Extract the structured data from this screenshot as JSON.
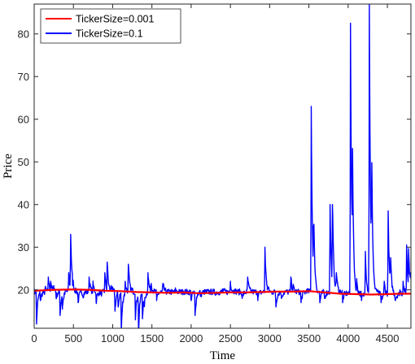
{
  "chart_data": {
    "type": "line",
    "xlabel": "Time",
    "ylabel": "Price",
    "xlim": [
      0,
      4800
    ],
    "ylim": [
      11,
      87
    ],
    "xticks": [
      0,
      500,
      1000,
      1500,
      2000,
      2500,
      3000,
      3500,
      4000,
      4500
    ],
    "yticks": [
      20,
      30,
      40,
      50,
      60,
      70,
      80
    ],
    "grid": false,
    "legend_position": "top-left",
    "series": [
      {
        "name": "TickerSize=0.001",
        "color": "#ff0000",
        "points": [
          [
            0,
            19.8
          ],
          [
            250,
            20.0
          ],
          [
            500,
            20.1
          ],
          [
            700,
            20.0
          ],
          [
            900,
            19.8
          ],
          [
            1100,
            19.7
          ],
          [
            1300,
            19.5
          ],
          [
            1500,
            19.4
          ],
          [
            1700,
            19.3
          ],
          [
            1900,
            19.4
          ],
          [
            2100,
            19.2
          ],
          [
            2300,
            19.3
          ],
          [
            2500,
            19.4
          ],
          [
            2700,
            19.4
          ],
          [
            2900,
            19.5
          ],
          [
            3100,
            19.6
          ],
          [
            3300,
            19.6
          ],
          [
            3500,
            19.7
          ],
          [
            3700,
            19.4
          ],
          [
            3900,
            19.1
          ],
          [
            4100,
            19.0
          ],
          [
            4300,
            18.9
          ],
          [
            4500,
            19.0
          ],
          [
            4650,
            19.1
          ],
          [
            4800,
            19.1
          ]
        ]
      },
      {
        "name": "TickerSize=0.1",
        "color": "#0000ff",
        "spikes": [
          [
            30,
            12.0,
            19.5
          ],
          [
            80,
            17.5,
            19.5
          ],
          [
            140,
            20.5,
            19.5
          ],
          [
            180,
            23.0,
            19.5
          ],
          [
            210,
            22.0,
            19.5
          ],
          [
            250,
            21.0,
            19.5
          ],
          [
            280,
            18.0,
            19.5
          ],
          [
            330,
            14.0,
            19.5
          ],
          [
            360,
            16.0,
            19.5
          ],
          [
            400,
            20.0,
            19.5
          ],
          [
            440,
            24.0,
            19.5
          ],
          [
            465,
            33.0,
            19.5
          ],
          [
            490,
            21.0,
            19.5
          ],
          [
            560,
            17.0,
            19.5
          ],
          [
            620,
            18.5,
            19.5
          ],
          [
            700,
            23.0,
            19.5
          ],
          [
            750,
            21.5,
            19.5
          ],
          [
            790,
            17.0,
            19.5
          ],
          [
            850,
            19.0,
            19.5
          ],
          [
            900,
            24.0,
            19.5
          ],
          [
            930,
            26.5,
            19.5
          ],
          [
            980,
            21.0,
            19.5
          ],
          [
            1030,
            15.0,
            19.5
          ],
          [
            1070,
            16.0,
            19.5
          ],
          [
            1110,
            10.0,
            19.5
          ],
          [
            1160,
            22.0,
            19.5
          ],
          [
            1200,
            26.0,
            19.5
          ],
          [
            1240,
            20.0,
            19.5
          ],
          [
            1290,
            13.0,
            19.5
          ],
          [
            1330,
            10.0,
            19.5
          ],
          [
            1380,
            13.5,
            19.5
          ],
          [
            1400,
            17.0,
            19.5
          ],
          [
            1450,
            24.0,
            19.5
          ],
          [
            1490,
            21.5,
            19.5
          ],
          [
            1560,
            17.5,
            19.5
          ],
          [
            1640,
            21.5,
            19.5
          ],
          [
            1700,
            19.5,
            19.5
          ],
          [
            1800,
            20.0,
            19.5
          ],
          [
            1900,
            19.7,
            19.5
          ],
          [
            2000,
            17.5,
            19.5
          ],
          [
            2050,
            14.0,
            19.5
          ],
          [
            2120,
            18.5,
            19.5
          ],
          [
            2200,
            19.6,
            19.5
          ],
          [
            2300,
            19.3,
            19.5
          ],
          [
            2400,
            20.0,
            19.5
          ],
          [
            2500,
            22.0,
            19.5
          ],
          [
            2550,
            20.0,
            19.5
          ],
          [
            2650,
            18.0,
            19.5
          ],
          [
            2720,
            23.0,
            19.5
          ],
          [
            2760,
            19.5,
            19.5
          ],
          [
            2850,
            18.0,
            19.5
          ],
          [
            2940,
            30.0,
            19.5
          ],
          [
            2970,
            20.0,
            19.5
          ],
          [
            3080,
            16.0,
            19.5
          ],
          [
            3150,
            18.0,
            19.5
          ],
          [
            3270,
            23.0,
            19.5
          ],
          [
            3300,
            20.5,
            19.5
          ],
          [
            3400,
            17.0,
            19.5
          ],
          [
            3470,
            20.0,
            19.5
          ],
          [
            3530,
            63.0,
            19.5
          ],
          [
            3560,
            35.0,
            19.5
          ],
          [
            3640,
            17.0,
            19.5
          ],
          [
            3700,
            18.0,
            19.5
          ],
          [
            3770,
            40.0,
            19.5
          ],
          [
            3800,
            40.0,
            19.5
          ],
          [
            3850,
            24.0,
            19.5
          ],
          [
            3930,
            17.0,
            19.5
          ],
          [
            4030,
            82.5,
            19.0
          ],
          [
            4055,
            44.5,
            19.0
          ],
          [
            4110,
            22.0,
            19.0
          ],
          [
            4170,
            17.5,
            19.0
          ],
          [
            4220,
            29.0,
            19.0
          ],
          [
            4270,
            87.0,
            19.0
          ],
          [
            4300,
            46.0,
            19.0
          ],
          [
            4360,
            20.0,
            19.0
          ],
          [
            4420,
            17.0,
            19.0
          ],
          [
            4460,
            22.0,
            19.0
          ],
          [
            4510,
            38.5,
            19.0
          ],
          [
            4540,
            26.0,
            19.0
          ],
          [
            4600,
            17.5,
            19.0
          ],
          [
            4660,
            20.0,
            19.0
          ],
          [
            4700,
            22.0,
            19.0
          ],
          [
            4745,
            30.5,
            19.0
          ],
          [
            4770,
            29.0,
            19.0
          ],
          [
            4790,
            23.0,
            19.0
          ]
        ]
      }
    ]
  }
}
